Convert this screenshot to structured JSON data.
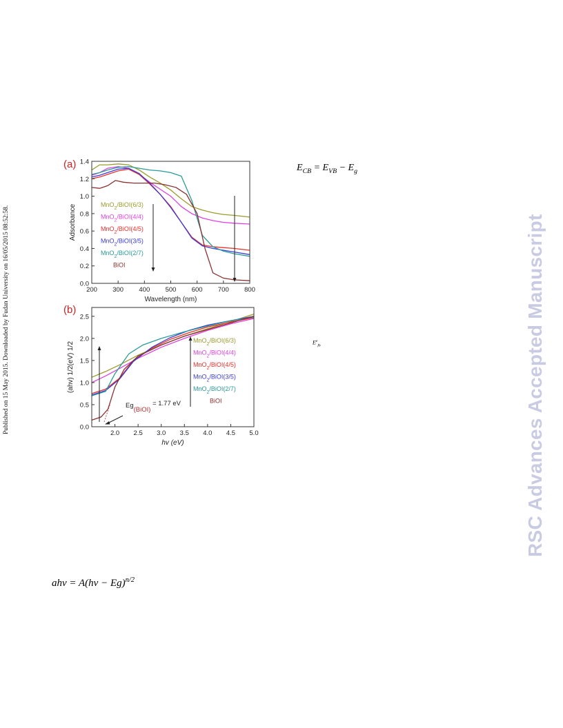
{
  "side_note": "Published on 15 May 2015. Downloaded by Fudan University on 16/05/2015 08:52:58.",
  "watermark": "RSC Advances Accepted Manuscript",
  "equations": {
    "ecb_lhs": "E",
    "ecb_lhs_sub": "CB",
    "ecb_mid": " = E",
    "ecb_mid_sub": "VB",
    "ecb_rhs": " − E",
    "ecb_rhs_sub": "g",
    "efb": "E",
    "efb_sup": "e",
    "efb_sub": "fb",
    "absorption_main": "ahv = A(hv − Eg)",
    "absorption_exp": "n/2"
  },
  "chart_data": [
    {
      "panel_label": "(a)",
      "type": "line",
      "xlabel": "Wavelength (nm)",
      "ylabel": "Adsorbance",
      "xlim": [
        200,
        800
      ],
      "ylim": [
        0.0,
        1.4
      ],
      "xticks": [
        "200",
        "300",
        "400",
        "500",
        "600",
        "700",
        "800"
      ],
      "yticks": [
        "0.0",
        "0.2",
        "0.4",
        "0.6",
        "0.8",
        "1.0",
        "1.2",
        "1.4"
      ],
      "legend_placement": "left",
      "series": [
        {
          "name": "MnO2/BiOI(6/3)",
          "color": "#9a9a2c",
          "x": [
            200,
            230,
            260,
            300,
            340,
            380,
            420,
            460,
            500,
            540,
            580,
            620,
            660,
            700,
            740,
            800
          ],
          "y": [
            1.3,
            1.36,
            1.36,
            1.37,
            1.36,
            1.3,
            1.22,
            1.15,
            1.07,
            0.97,
            0.88,
            0.84,
            0.81,
            0.79,
            0.78,
            0.76
          ]
        },
        {
          "name": "MnO2/BiOI(4/4)",
          "color": "#e040e0",
          "x": [
            200,
            230,
            260,
            300,
            340,
            380,
            420,
            460,
            500,
            540,
            580,
            620,
            660,
            700,
            740,
            800
          ],
          "y": [
            1.24,
            1.27,
            1.32,
            1.34,
            1.32,
            1.25,
            1.16,
            1.08,
            1.0,
            0.88,
            0.8,
            0.75,
            0.72,
            0.7,
            0.69,
            0.68
          ]
        },
        {
          "name": "MnO2/BiOI(4/5)",
          "color": "#e8302a",
          "x": [
            200,
            230,
            260,
            300,
            340,
            380,
            420,
            460,
            500,
            540,
            580,
            620,
            660,
            700,
            740,
            800
          ],
          "y": [
            1.2,
            1.22,
            1.25,
            1.29,
            1.31,
            1.25,
            1.14,
            1.02,
            0.88,
            0.7,
            0.53,
            0.44,
            0.42,
            0.41,
            0.4,
            0.38
          ]
        },
        {
          "name": "MnO2/BiOI(3/5)",
          "color": "#3a3ad8",
          "x": [
            200,
            230,
            260,
            300,
            340,
            380,
            420,
            460,
            500,
            540,
            580,
            620,
            660,
            700,
            740,
            800
          ],
          "y": [
            1.22,
            1.24,
            1.27,
            1.31,
            1.32,
            1.26,
            1.15,
            1.02,
            0.87,
            0.7,
            0.52,
            0.43,
            0.4,
            0.38,
            0.36,
            0.33
          ]
        },
        {
          "name": "MnO2/BiOI(2/7)",
          "color": "#2a9a96",
          "x": [
            200,
            230,
            260,
            300,
            340,
            380,
            420,
            460,
            500,
            540,
            580,
            620,
            660,
            700,
            740,
            800
          ],
          "y": [
            1.25,
            1.27,
            1.3,
            1.33,
            1.34,
            1.32,
            1.3,
            1.29,
            1.27,
            1.23,
            0.95,
            0.55,
            0.42,
            0.37,
            0.34,
            0.31
          ]
        },
        {
          "name": "BiOI",
          "color": "#8a3030",
          "x": [
            200,
            230,
            260,
            290,
            320,
            360,
            400,
            440,
            480,
            520,
            560,
            600,
            630,
            660,
            700,
            740,
            800
          ],
          "y": [
            1.1,
            1.09,
            1.12,
            1.18,
            1.16,
            1.15,
            1.15,
            1.15,
            1.13,
            1.1,
            1.02,
            0.8,
            0.4,
            0.12,
            0.06,
            0.04,
            0.03
          ]
        }
      ]
    },
    {
      "panel_label": "(b)",
      "type": "line",
      "xlabel": "hv (eV)",
      "ylabel": "(ahv) 1/2(eV) 1/2",
      "xlim": [
        1.5,
        5.0
      ],
      "ylim": [
        0.0,
        2.7
      ],
      "xticks": [
        "2.0",
        "2.5",
        "3.0",
        "3.5",
        "4.0",
        "4.5",
        "5.0"
      ],
      "yticks": [
        "0.0",
        "0.5",
        "1.0",
        "1.5",
        "2.0",
        "2.5"
      ],
      "annotation": "Eg(BiOI) = 1.77 eV",
      "legend_placement": "right",
      "series": [
        {
          "name": "MnO2/BiOI(6/3)",
          "color": "#9a9a2c",
          "x": [
            1.5,
            1.8,
            2.1,
            2.5,
            3.0,
            3.5,
            4.0,
            4.5,
            5.0
          ],
          "y": [
            1.12,
            1.25,
            1.4,
            1.62,
            1.85,
            2.05,
            2.22,
            2.38,
            2.55
          ]
        },
        {
          "name": "MnO2/BiOI(4/4)",
          "color": "#e040e0",
          "x": [
            1.5,
            1.8,
            2.1,
            2.5,
            3.0,
            3.5,
            4.0,
            4.5,
            5.0
          ],
          "y": [
            1.0,
            1.15,
            1.32,
            1.55,
            1.8,
            2.0,
            2.18,
            2.33,
            2.45
          ]
        },
        {
          "name": "MnO2/BiOI(4/5)",
          "color": "#e8302a",
          "x": [
            1.5,
            1.8,
            2.1,
            2.4,
            2.8,
            3.2,
            3.6,
            4.0,
            4.5,
            5.0
          ],
          "y": [
            0.75,
            0.85,
            1.1,
            1.5,
            1.78,
            1.98,
            2.13,
            2.26,
            2.37,
            2.47
          ]
        },
        {
          "name": "MnO2/BiOI(3/5)",
          "color": "#3a3ad8",
          "x": [
            1.5,
            1.8,
            2.1,
            2.4,
            2.8,
            3.2,
            3.6,
            4.0,
            4.5,
            5.0
          ],
          "y": [
            0.72,
            0.82,
            1.08,
            1.48,
            1.8,
            2.02,
            2.18,
            2.3,
            2.4,
            2.5
          ]
        },
        {
          "name": "MnO2/BiOI(2/7)",
          "color": "#2a9a96",
          "x": [
            1.5,
            1.8,
            2.0,
            2.3,
            2.6,
            3.0,
            3.5,
            4.0,
            4.5,
            5.0
          ],
          "y": [
            0.7,
            0.8,
            1.2,
            1.65,
            1.85,
            2.0,
            2.15,
            2.28,
            2.4,
            2.48
          ]
        },
        {
          "name": "BiOI",
          "color": "#8a3030",
          "x": [
            1.5,
            1.7,
            1.85,
            2.0,
            2.2,
            2.5,
            3.0,
            3.5,
            4.0,
            4.5,
            5.0
          ],
          "y": [
            0.15,
            0.22,
            0.4,
            0.9,
            1.3,
            1.6,
            1.85,
            2.05,
            2.2,
            2.35,
            2.5
          ]
        }
      ]
    }
  ]
}
